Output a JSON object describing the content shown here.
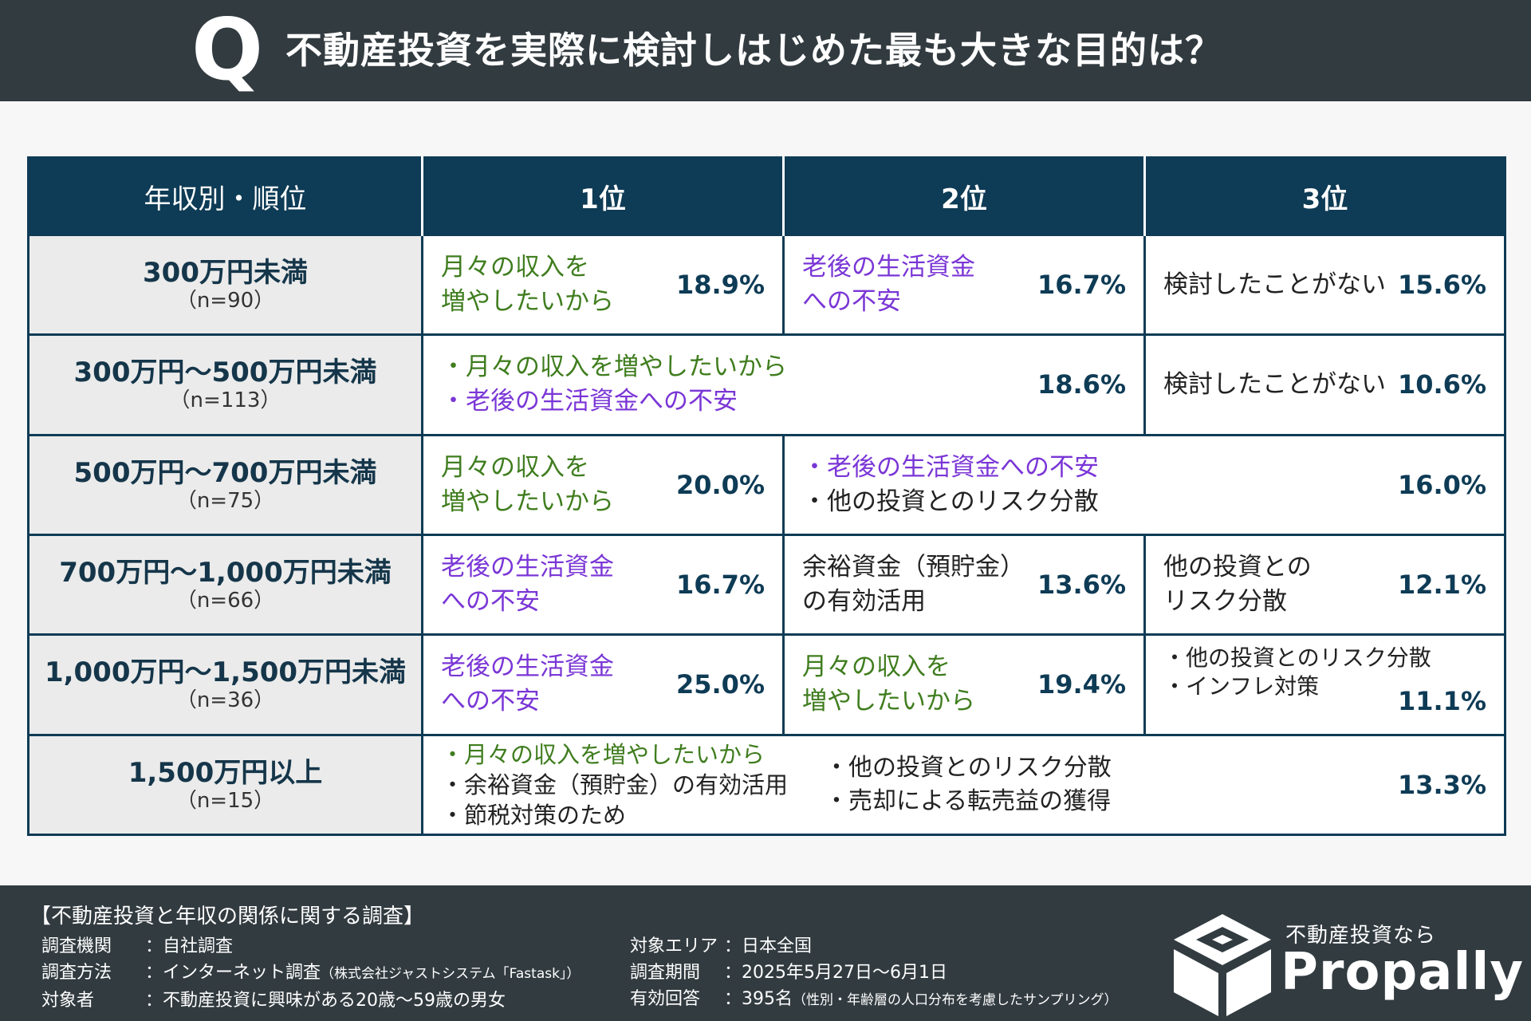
{
  "header": {
    "q": "Q",
    "title": "不動産投資を実際に検討しはじめた最も大きな目的は？"
  },
  "table": {
    "columns": [
      "年収別・順位",
      "1位",
      "2位",
      "3位"
    ],
    "rows": [
      {
        "name": "300万円未満",
        "n": "（n=90）",
        "c1": {
          "l1": "月々の収入を",
          "l2": "増やしたいから",
          "pct": "18.9%"
        },
        "c2": {
          "l1": "老後の生活資金",
          "l2": "への不安",
          "pct": "16.7%"
        },
        "c3": {
          "l1": "検討したことがない",
          "pct": "15.6%"
        }
      },
      {
        "name": "300万円～500万円未満",
        "n": "（n=113）",
        "c12": {
          "l1": "・月々の収入を増やしたいから",
          "l2": "・老後の生活資金への不安",
          "pct": "18.6%"
        },
        "c3": {
          "l1": "検討したことがない",
          "pct": "10.6%"
        }
      },
      {
        "name": "500万円～700万円未満",
        "n": "（n=75）",
        "c1": {
          "l1": "月々の収入を",
          "l2": "増やしたいから",
          "pct": "20.0%"
        },
        "c23": {
          "l1": "・老後の生活資金への不安",
          "l2": "・他の投資とのリスク分散",
          "pct": "16.0%"
        }
      },
      {
        "name": "700万円～1,000万円未満",
        "n": "（n=66）",
        "c1": {
          "l1": "老後の生活資金",
          "l2": "への不安",
          "pct": "16.7%"
        },
        "c2": {
          "l1": "余裕資金（預貯金）",
          "l2": "の有効活用",
          "pct": "13.6%"
        },
        "c3": {
          "l1": "他の投資との",
          "l2": "リスク分散",
          "pct": "12.1%"
        }
      },
      {
        "name": "1,000万円～1,500万円未満",
        "n": "（n=36）",
        "c1": {
          "l1": "老後の生活資金",
          "l2": "への不安",
          "pct": "25.0%"
        },
        "c2": {
          "l1": "月々の収入を",
          "l2": "増やしたいから",
          "pct": "19.4%"
        },
        "c3": {
          "l1": "・他の投資とのリスク分散",
          "l2": "・インフレ対策",
          "pct": "11.1%"
        }
      },
      {
        "name": "1,500万円以上",
        "n": "（n=15）",
        "call": {
          "a1": "・月々の収入を増やしたいから",
          "a2": "・余裕資金（預貯金）の有効活用",
          "a3": "・節税対策のため",
          "b1": "・他の投資とのリスク分散",
          "b2": "・売却による転売益の獲得",
          "pct": "13.3%"
        }
      }
    ]
  },
  "footer": {
    "title": "【不動産投資と年収の関係に関する調査】",
    "left": [
      {
        "label": "調査機関",
        "value": "：自社調査"
      },
      {
        "label": "調査方法",
        "value": "：インターネット調査",
        "note": "（株式会社ジャストシステム「Fastask」）"
      },
      {
        "label": "対象者",
        "value": "：不動産投資に興味がある20歳～59歳の男女"
      }
    ],
    "right": [
      {
        "label": "対象エリア",
        "value": "：日本全国"
      },
      {
        "label": "調査期間",
        "value": "：2025年5月27日～6月1日"
      },
      {
        "label": "有効回答",
        "value": "：395名",
        "note": "（性別・年齢層の人口分布を考慮したサンプリング）"
      }
    ],
    "logo_tagline": "不動産投資なら",
    "logo_name": "Propally"
  },
  "colors": {
    "navy": "#0e3b55",
    "green": "#3f7d1e",
    "purple": "#7a36d6",
    "header_bg": "#323b40"
  }
}
